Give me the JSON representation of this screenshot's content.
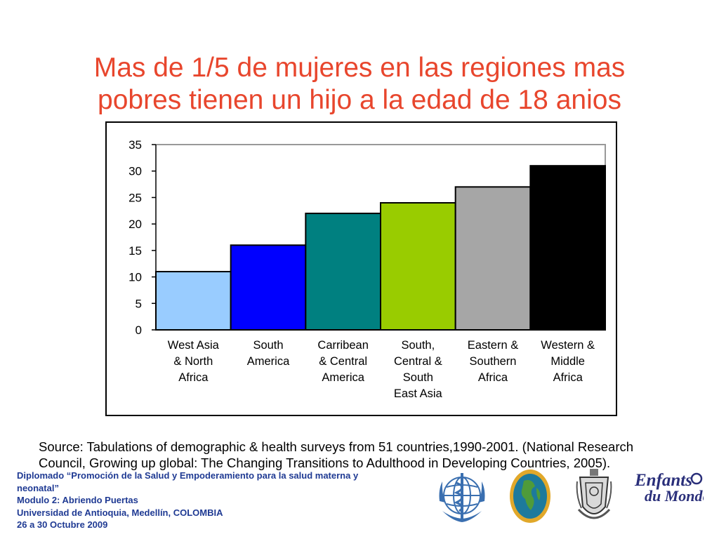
{
  "title": {
    "line1": "Mas de 1/5 de mujeres en las regiones mas",
    "line2": "pobres tienen un hijo a la edad de 18 anios"
  },
  "chart_data": {
    "type": "bar",
    "categories": [
      "West Asia & North Africa",
      "South America",
      "Carribean & Central America",
      "South, Central & South East Asia",
      "Eastern & Southern Africa",
      "Western & Middle Africa"
    ],
    "category_lines": [
      [
        "West Asia",
        "& North",
        "Africa"
      ],
      [
        "South",
        "America"
      ],
      [
        "Carribean",
        "& Central",
        "America"
      ],
      [
        "South,",
        "Central &",
        "South",
        "East Asia"
      ],
      [
        "Eastern &",
        "Southern",
        "Africa"
      ],
      [
        "Western &",
        "Middle",
        "Africa"
      ]
    ],
    "values": [
      11,
      16,
      22,
      24,
      27,
      31
    ],
    "colors": [
      "#99ccff",
      "#0000ff",
      "#008080",
      "#99cc00",
      "#a6a6a6",
      "#000000"
    ],
    "ylim": [
      0,
      35
    ],
    "yticks": [
      0,
      5,
      10,
      15,
      20,
      25,
      30,
      35
    ],
    "xlabel": "",
    "ylabel": ""
  },
  "source": {
    "line1": "Source: Tabulations of demographic & health surveys from 51 countries,1990-2001. (National Research",
    "line2": "Council, Growing up global: The Changing Transitions to Adulthood in Developing Countries, 2005)."
  },
  "footer": {
    "line1": "Diplomado “Promoción de la Salud y Empoderamiento para la salud materna y",
    "line2": "neonatal”",
    "line3": "Modulo 2: Abriendo Puertas",
    "line4": "Universidad de Antioquia, Medellín, COLOMBIA",
    "line5": "26 a 30 Octubre 2009"
  },
  "logos": {
    "who": "who-emblem-icon",
    "globe": "globe-seal-icon",
    "university": "university-crest-icon",
    "enfants": "Enfants du Monde"
  },
  "colors": {
    "title": "#e8462d",
    "footer": "#1f3a93",
    "enfants_logo": "#2a2f7a"
  }
}
